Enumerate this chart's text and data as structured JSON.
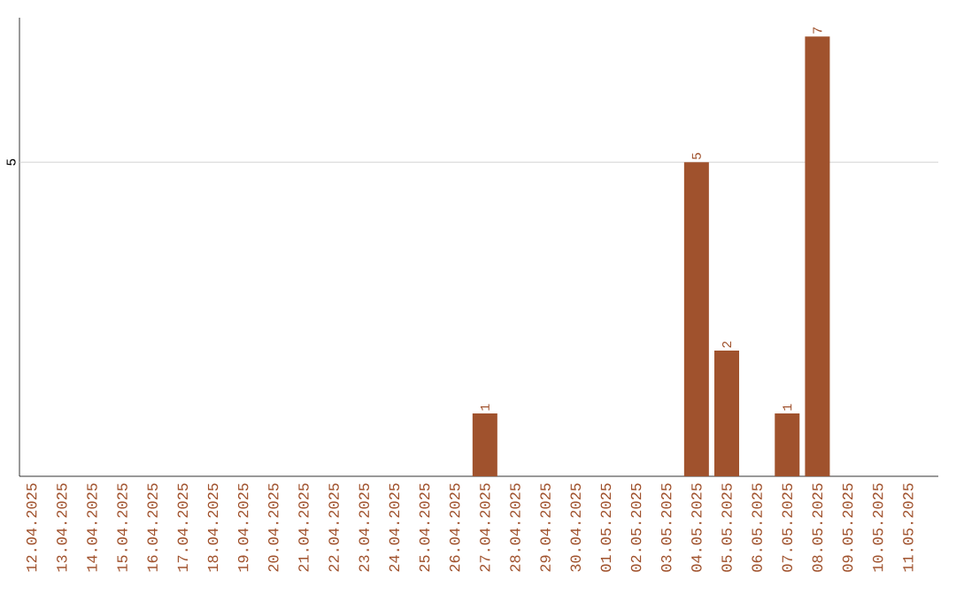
{
  "chart_data": {
    "type": "bar",
    "categories": [
      "12.04.2025",
      "13.04.2025",
      "14.04.2025",
      "15.04.2025",
      "16.04.2025",
      "17.04.2025",
      "18.04.2025",
      "19.04.2025",
      "20.04.2025",
      "21.04.2025",
      "22.04.2025",
      "23.04.2025",
      "24.04.2025",
      "25.04.2025",
      "26.04.2025",
      "27.04.2025",
      "28.04.2025",
      "29.04.2025",
      "30.04.2025",
      "01.05.2025",
      "02.05.2025",
      "03.05.2025",
      "04.05.2025",
      "05.05.2025",
      "06.05.2025",
      "07.05.2025",
      "08.05.2025",
      "09.05.2025",
      "10.05.2025",
      "11.05.2025"
    ],
    "values": [
      null,
      null,
      null,
      null,
      null,
      null,
      null,
      null,
      null,
      null,
      null,
      null,
      null,
      null,
      null,
      1,
      null,
      null,
      null,
      null,
      null,
      null,
      5,
      2,
      null,
      1,
      7,
      null,
      null,
      null
    ],
    "value_labels": [
      null,
      null,
      null,
      null,
      null,
      null,
      null,
      null,
      null,
      null,
      null,
      null,
      null,
      null,
      null,
      "1",
      null,
      null,
      null,
      null,
      null,
      null,
      "5",
      "2",
      null,
      "1",
      "7",
      null,
      null,
      null
    ],
    "color": "#a0522d",
    "ylim": [
      0,
      7.3
    ],
    "ref_lines": [
      {
        "axis": "y",
        "value": 5,
        "label": "5",
        "color": "#c8c8c8"
      }
    ]
  }
}
